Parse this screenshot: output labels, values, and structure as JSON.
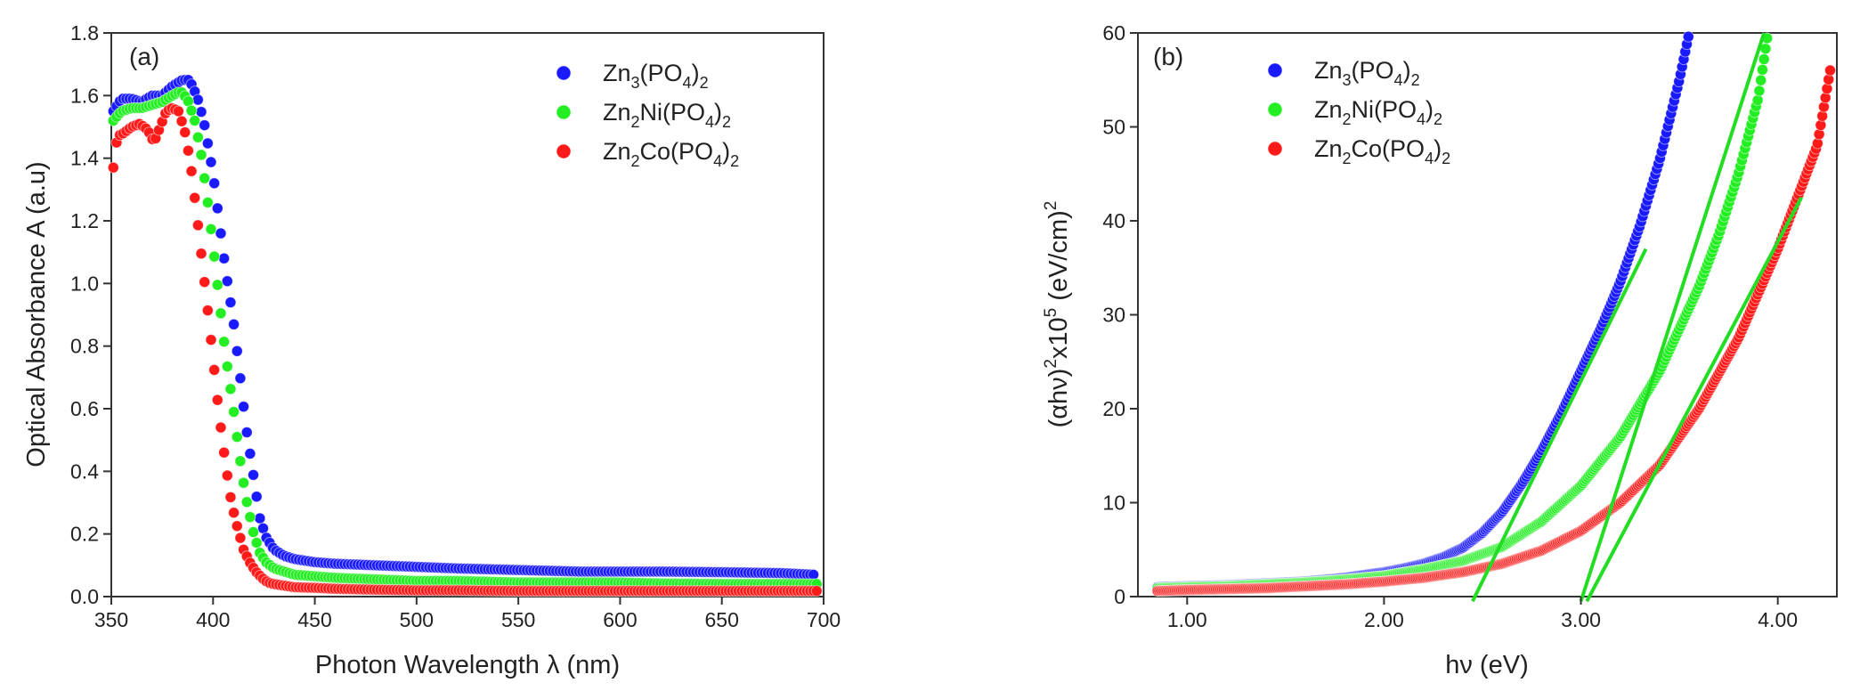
{
  "chart_data": [
    {
      "type": "scatter",
      "panel_label": "(a)",
      "xlabel": "Photon Wavelength λ (nm)",
      "ylabel": "Optical Absorbance A (a.u)",
      "xlim": [
        350,
        700
      ],
      "ylim": [
        0,
        1.8
      ],
      "xticks": [
        350,
        400,
        450,
        500,
        550,
        600,
        650,
        700
      ],
      "yticks": [
        0.0,
        0.2,
        0.4,
        0.6,
        0.8,
        1.0,
        1.2,
        1.4,
        1.6,
        1.8
      ],
      "xtick_labels": [
        "350",
        "400",
        "450",
        "500",
        "550",
        "600",
        "650",
        "700"
      ],
      "ytick_labels": [
        "0.0",
        "0.2",
        "0.4",
        "0.6",
        "0.8",
        "1.0",
        "1.2",
        "1.4",
        "1.6",
        "1.8"
      ],
      "legend_position": "top-right",
      "series": [
        {
          "name": "Zn3(PO4)2",
          "legend": {
            "base1": "Zn",
            "sub1": "3",
            "base2": "(PO",
            "sub2": "4",
            "base3": ")",
            "sub3": "2"
          },
          "color": "#1a1aff",
          "x": [
            351,
            355,
            360,
            365,
            370,
            375,
            380,
            385,
            388,
            390,
            393,
            396,
            400,
            403,
            406,
            410,
            413,
            416,
            420,
            423,
            426,
            430,
            435,
            440,
            450,
            460,
            480,
            500,
            520,
            550,
            580,
            600,
            620,
            650,
            680,
            695
          ],
          "y": [
            1.55,
            1.59,
            1.59,
            1.58,
            1.6,
            1.6,
            1.63,
            1.65,
            1.65,
            1.63,
            1.58,
            1.5,
            1.35,
            1.2,
            1.05,
            0.88,
            0.72,
            0.55,
            0.38,
            0.25,
            0.19,
            0.15,
            0.13,
            0.12,
            0.11,
            0.105,
            0.1,
            0.095,
            0.09,
            0.085,
            0.08,
            0.08,
            0.08,
            0.078,
            0.075,
            0.07
          ]
        },
        {
          "name": "Zn2Ni(PO4)2",
          "legend": {
            "base1": "Zn",
            "sub1": "2",
            "base2": "Ni(PO",
            "sub2": "4",
            "base3": ")",
            "sub3": "2"
          },
          "color": "#22ee22",
          "x": [
            351,
            355,
            360,
            365,
            370,
            375,
            380,
            383,
            385,
            388,
            391,
            394,
            397,
            400,
            403,
            406,
            410,
            413,
            416,
            420,
            423,
            426,
            430,
            435,
            440,
            450,
            460,
            480,
            500,
            520,
            550,
            580,
            600,
            620,
            650,
            680,
            698
          ],
          "y": [
            1.52,
            1.55,
            1.56,
            1.56,
            1.57,
            1.58,
            1.6,
            1.61,
            1.61,
            1.58,
            1.52,
            1.42,
            1.28,
            1.12,
            0.95,
            0.78,
            0.6,
            0.45,
            0.32,
            0.2,
            0.14,
            0.11,
            0.09,
            0.08,
            0.07,
            0.065,
            0.06,
            0.055,
            0.05,
            0.05,
            0.045,
            0.045,
            0.045,
            0.042,
            0.04,
            0.04,
            0.04
          ]
        },
        {
          "name": "Zn2Co(PO4)2",
          "legend": {
            "base1": "Zn",
            "sub1": "2",
            "base2": "Co(PO",
            "sub2": "4",
            "base3": ")",
            "sub3": "2"
          },
          "color": "#ff1a1a",
          "x": [
            351,
            353,
            356,
            360,
            364,
            368,
            371,
            374,
            377,
            380,
            383,
            386,
            389,
            392,
            395,
            398,
            400,
            403,
            406,
            409,
            412,
            415,
            418,
            421,
            424,
            427,
            430,
            435,
            440,
            450,
            460,
            480,
            500,
            520,
            550,
            580,
            600,
            620,
            650,
            680,
            698
          ],
          "y": [
            1.37,
            1.47,
            1.48,
            1.5,
            1.51,
            1.49,
            1.45,
            1.5,
            1.55,
            1.56,
            1.55,
            1.49,
            1.38,
            1.22,
            1.05,
            0.88,
            0.76,
            0.58,
            0.43,
            0.3,
            0.22,
            0.15,
            0.11,
            0.08,
            0.06,
            0.045,
            0.04,
            0.035,
            0.03,
            0.028,
            0.025,
            0.022,
            0.02,
            0.02,
            0.018,
            0.018,
            0.018,
            0.018,
            0.018,
            0.018,
            0.018
          ]
        }
      ]
    },
    {
      "type": "scatter",
      "panel_label": "(b)",
      "xlabel": "hν (eV)",
      "ylabel": {
        "base1": "(αhν)",
        "sup1": "2",
        "base2": "x10",
        "sup2": "5",
        "base3": " (eV/cm)",
        "sup3": "2"
      },
      "xlim": [
        0.75,
        4.3
      ],
      "ylim": [
        0,
        60
      ],
      "xticks": [
        1.0,
        2.0,
        3.0,
        4.0
      ],
      "yticks": [
        0,
        10,
        20,
        30,
        40,
        50,
        60
      ],
      "xtick_labels": [
        "1.00",
        "2.00",
        "3.00",
        "4.00"
      ],
      "ytick_labels": [
        "0",
        "10",
        "20",
        "30",
        "40",
        "50",
        "60"
      ],
      "legend_position": "top-left",
      "series": [
        {
          "name": "Zn3(PO4)2",
          "legend": {
            "base1": "Zn",
            "sub1": "3",
            "base2": "(PO",
            "sub2": "4",
            "base3": ")",
            "sub3": "2"
          },
          "color": "#1a1aff",
          "x": [
            0.85,
            1.0,
            1.2,
            1.4,
            1.6,
            1.8,
            2.0,
            2.1,
            2.2,
            2.3,
            2.4,
            2.5,
            2.6,
            2.7,
            2.8,
            2.9,
            3.0,
            3.1,
            3.2,
            3.3,
            3.4,
            3.5,
            3.55
          ],
          "y": [
            1.0,
            1.1,
            1.2,
            1.4,
            1.6,
            2.0,
            2.6,
            3.0,
            3.5,
            4.2,
            5.2,
            6.8,
            9.0,
            12.0,
            15.5,
            19.5,
            24.0,
            28.5,
            33.5,
            39.5,
            46.5,
            55.0,
            60.0
          ]
        },
        {
          "name": "Zn2Ni(PO4)2",
          "legend": {
            "base1": "Zn",
            "sub1": "2",
            "base2": "Ni(PO",
            "sub2": "4",
            "base3": ")",
            "sub3": "2"
          },
          "color": "#22ee22",
          "x": [
            0.85,
            1.0,
            1.2,
            1.4,
            1.6,
            1.8,
            2.0,
            2.2,
            2.4,
            2.6,
            2.8,
            3.0,
            3.2,
            3.4,
            3.6,
            3.7,
            3.8,
            3.9,
            3.95
          ],
          "y": [
            0.9,
            1.0,
            1.1,
            1.3,
            1.5,
            1.8,
            2.2,
            2.9,
            3.8,
            5.3,
            8.0,
            11.8,
            17.0,
            24.0,
            33.0,
            38.5,
            45.0,
            53.0,
            60.0
          ]
        },
        {
          "name": "Zn2Co(PO4)2",
          "legend": {
            "base1": "Zn",
            "sub1": "2",
            "base2": "Co(PO",
            "sub2": "4",
            "base3": ")",
            "sub3": "2"
          },
          "color": "#ff1a1a",
          "x": [
            0.85,
            1.0,
            1.2,
            1.4,
            1.6,
            1.8,
            2.0,
            2.2,
            2.4,
            2.6,
            2.8,
            3.0,
            3.2,
            3.4,
            3.6,
            3.8,
            4.0,
            4.2,
            4.27
          ],
          "y": [
            0.6,
            0.7,
            0.8,
            0.9,
            1.1,
            1.3,
            1.6,
            2.0,
            2.6,
            3.5,
            4.9,
            7.0,
            10.0,
            14.0,
            20.0,
            27.5,
            37.0,
            48.0,
            56.5
          ]
        }
      ],
      "fit_lines": [
        {
          "color": "#22dd22",
          "x": [
            2.45,
            3.33
          ],
          "y": [
            -0.5,
            37.0
          ]
        },
        {
          "color": "#22dd22",
          "x": [
            3.0,
            3.93
          ],
          "y": [
            -0.5,
            60.0
          ]
        },
        {
          "color": "#22dd22",
          "x": [
            3.03,
            4.12
          ],
          "y": [
            -0.5,
            42.5
          ]
        }
      ]
    }
  ]
}
